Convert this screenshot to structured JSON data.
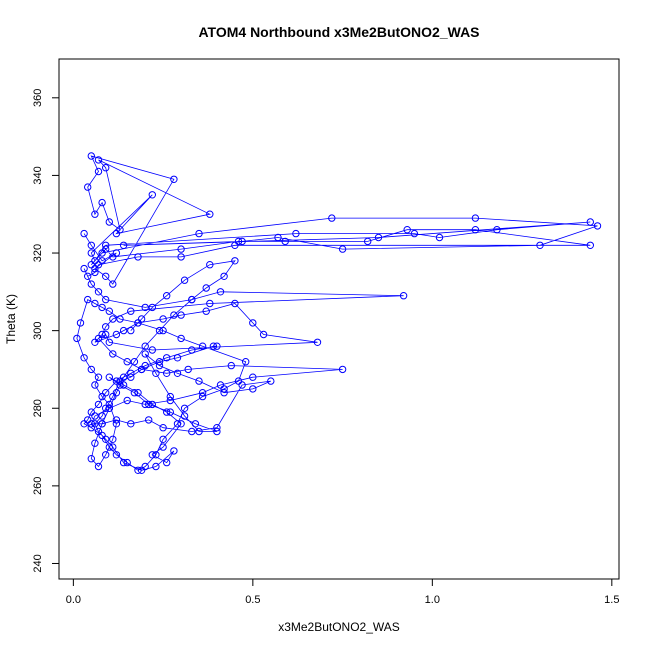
{
  "chart_data": {
    "type": "scatter",
    "title": "ATOM4 Northbound x3Me2ButONO2_WAS",
    "xlabel": "x3Me2ButONO2_WAS",
    "ylabel": "Theta (K)",
    "xlim": [
      -0.04,
      1.52
    ],
    "ylim": [
      236,
      370
    ],
    "x_ticks": [
      0.0,
      0.5,
      1.0,
      1.5
    ],
    "x_tick_labels": [
      "0.0",
      "0.5",
      "1.0",
      "1.5"
    ],
    "y_ticks": [
      240,
      260,
      280,
      300,
      320,
      340,
      360
    ],
    "y_tick_labels": [
      "240",
      "260",
      "280",
      "300",
      "320",
      "340",
      "360"
    ],
    "grid": false,
    "connected": true,
    "series": [
      {
        "color": "#0000ff",
        "x": [
          0.03,
          0.05,
          0.08,
          0.12,
          0.06,
          0.09,
          0.11,
          0.28,
          0.05,
          0.07,
          0.04,
          0.06,
          0.08,
          0.1,
          0.13,
          0.09,
          0.07,
          0.38,
          0.12,
          0.22,
          0.05,
          0.06,
          0.09,
          0.62,
          0.95,
          1.02,
          1.18,
          1.44,
          0.85,
          0.14,
          0.47,
          0.57,
          0.75,
          1.3,
          1.46,
          1.12,
          0.72,
          0.35,
          0.08,
          0.05,
          0.09,
          0.11,
          0.3,
          0.46,
          0.59,
          0.82,
          0.93,
          1.12,
          1.44,
          0.45,
          0.3,
          0.18,
          0.07,
          0.06,
          0.04,
          0.03,
          0.05,
          0.07,
          0.09,
          0.2,
          0.33,
          0.41,
          0.92,
          0.38,
          0.16,
          0.11,
          0.09,
          0.08,
          0.06,
          0.12,
          0.14,
          0.18,
          0.25,
          0.3,
          0.37,
          0.45,
          0.5,
          0.53,
          0.68,
          0.22,
          0.1,
          0.09,
          0.07,
          0.11,
          0.15,
          0.19,
          0.26,
          0.32,
          0.44,
          0.75,
          0.5,
          0.41,
          0.36,
          0.27,
          0.2,
          0.15,
          0.1,
          0.06,
          0.05,
          0.08,
          0.12,
          0.16,
          0.21,
          0.25,
          0.33,
          0.4,
          0.47,
          0.55,
          0.5,
          0.42,
          0.35,
          0.29,
          0.24,
          0.2,
          0.23,
          0.27,
          0.31,
          0.35,
          0.4,
          0.34,
          0.27,
          0.21,
          0.17,
          0.13,
          0.1,
          0.14,
          0.18,
          0.22,
          0.26,
          0.3,
          0.25,
          0.22,
          0.26,
          0.28,
          0.23,
          0.19,
          0.14,
          0.11,
          0.09,
          0.07,
          0.06,
          0.08,
          0.09,
          0.11,
          0.13,
          0.16,
          0.19,
          0.24,
          0.29,
          0.39,
          0.4,
          0.33,
          0.26,
          0.2,
          0.16,
          0.12,
          0.09,
          0.07,
          0.05,
          0.04,
          0.03,
          0.05,
          0.08,
          0.1,
          0.12,
          0.15,
          0.18,
          0.2,
          0.23,
          0.25,
          0.29,
          0.31,
          0.36,
          0.42,
          0.46,
          0.48,
          0.36,
          0.3,
          0.25,
          0.18,
          0.13,
          0.1,
          0.08,
          0.06,
          0.04,
          0.02,
          0.01,
          0.03,
          0.05,
          0.07,
          0.06,
          0.08,
          0.1,
          0.12,
          0.11,
          0.09,
          0.07,
          0.05,
          0.06,
          0.08,
          0.1,
          0.12,
          0.14,
          0.17,
          0.2,
          0.24,
          0.28,
          0.33,
          0.37,
          0.42,
          0.45,
          0.38,
          0.31,
          0.26,
          0.22,
          0.19,
          0.16
        ],
        "y": [
          325,
          322,
          318,
          320,
          316,
          314,
          312,
          339,
          345,
          341,
          337,
          330,
          333,
          328,
          326,
          342,
          344,
          330,
          325,
          335,
          320,
          318,
          322,
          325,
          325,
          324,
          326,
          328,
          324,
          322,
          323,
          324,
          321,
          322,
          327,
          329,
          329,
          325,
          320,
          317,
          321,
          319,
          321,
          323,
          323,
          323,
          326,
          326,
          322,
          322,
          319,
          319,
          317,
          315,
          314,
          316,
          312,
          310,
          308,
          306,
          308,
          310,
          309,
          307,
          305,
          303,
          301,
          299,
          297,
          299,
          300,
          302,
          303,
          304,
          305,
          307,
          302,
          299,
          297,
          295,
          297,
          299,
          298,
          294,
          292,
          290,
          289,
          290,
          291,
          290,
          288,
          286,
          284,
          282,
          281,
          282,
          280,
          278,
          276,
          276,
          277,
          276,
          277,
          275,
          274,
          275,
          286,
          287,
          285,
          284,
          287,
          289,
          291,
          294,
          289,
          283,
          278,
          274,
          274,
          276,
          279,
          281,
          284,
          286,
          288,
          286,
          284,
          281,
          279,
          276,
          270,
          268,
          266,
          269,
          265,
          264,
          266,
          270,
          272,
          274,
          276,
          278,
          280,
          283,
          287,
          288,
          290,
          292,
          293,
          296,
          296,
          295,
          293,
          291,
          289,
          287,
          284,
          281,
          279,
          277,
          276,
          275,
          273,
          270,
          268,
          266,
          264,
          265,
          268,
          272,
          276,
          280,
          283,
          285,
          287,
          292,
          296,
          298,
          300,
          302,
          303,
          305,
          306,
          307,
          308,
          302,
          298,
          293,
          290,
          288,
          286,
          283,
          281,
          276,
          272,
          268,
          265,
          267,
          271,
          276,
          280,
          284,
          288,
          292,
          296,
          300,
          304,
          308,
          311,
          314,
          318,
          317,
          313,
          309,
          306,
          303,
          300
        ]
      }
    ]
  }
}
